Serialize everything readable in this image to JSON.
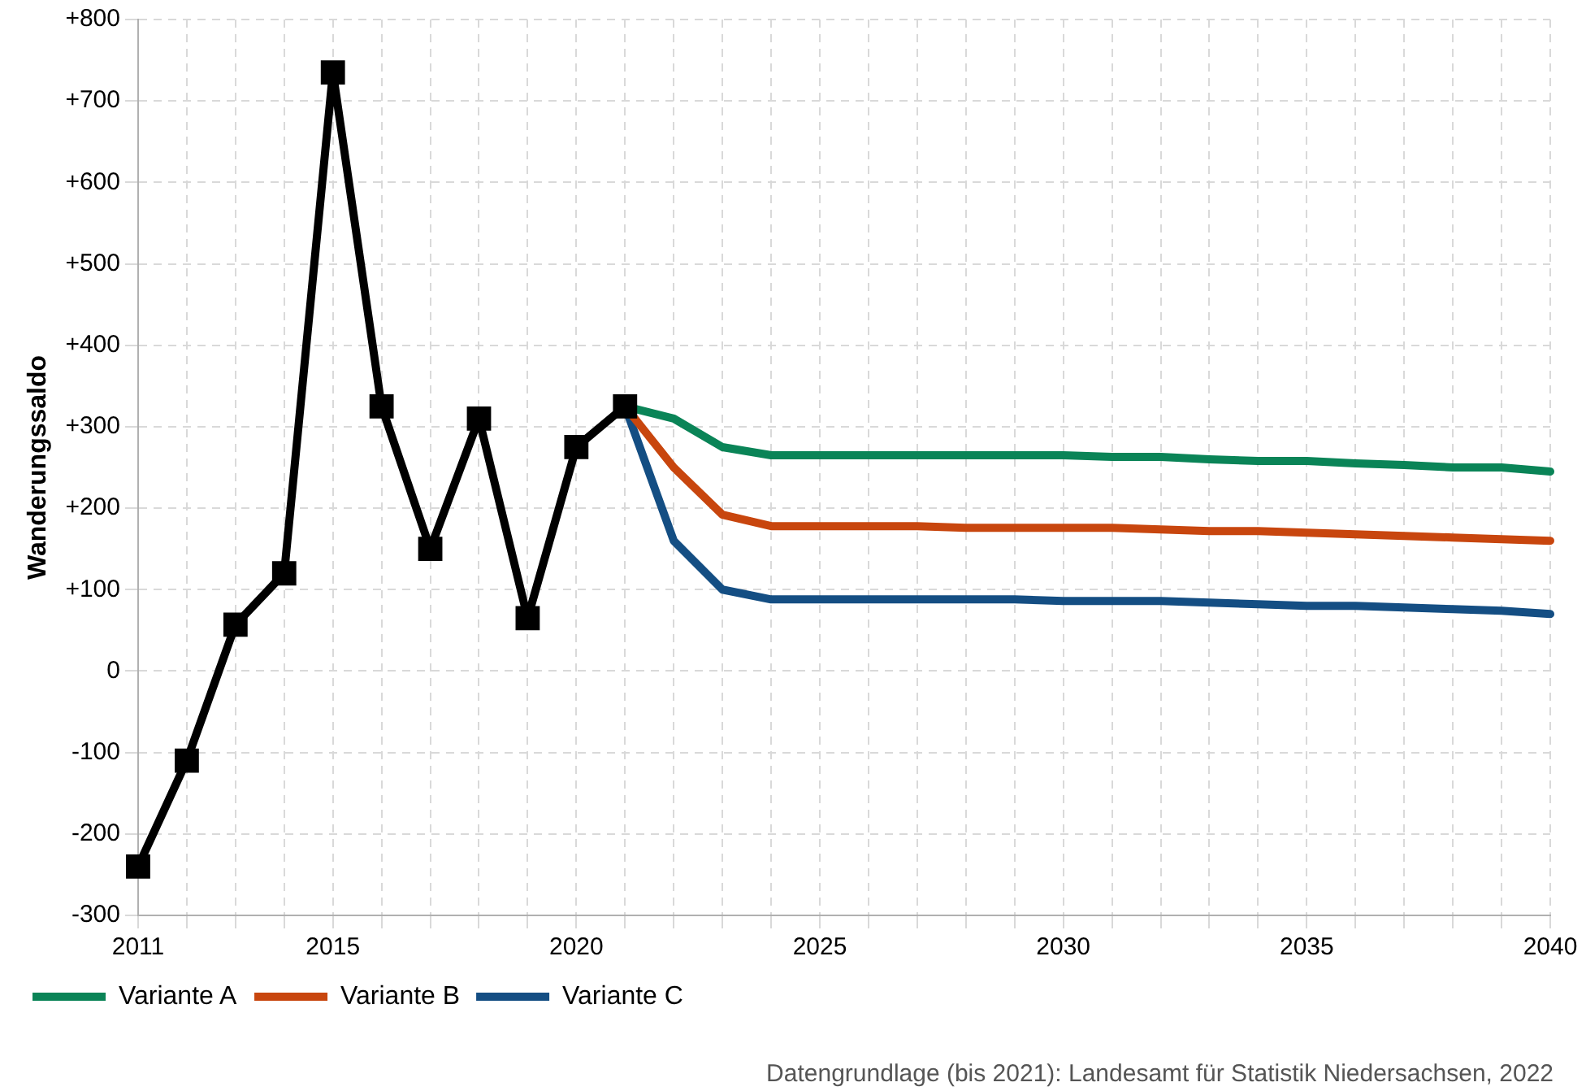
{
  "chart_data": {
    "type": "line",
    "ylabel": "Wanderungssaldo",
    "xlim": [
      2011,
      2040
    ],
    "xticks": [
      2011,
      {
        "value": 2012,
        "label": null
      },
      {
        "value": 2013,
        "label": null
      },
      {
        "value": 2014,
        "label": null
      },
      2015,
      {
        "value": 2016,
        "label": null
      },
      {
        "value": 2017,
        "label": null
      },
      {
        "value": 2018,
        "label": null
      },
      {
        "value": 2019,
        "label": null
      },
      2020,
      {
        "value": 2021,
        "label": null
      },
      {
        "value": 2022,
        "label": null
      },
      {
        "value": 2023,
        "label": null
      },
      {
        "value": 2024,
        "label": null
      },
      2025,
      {
        "value": 2026,
        "label": null
      },
      {
        "value": 2027,
        "label": null
      },
      {
        "value": 2028,
        "label": null
      },
      {
        "value": 2029,
        "label": null
      },
      2030,
      {
        "value": 2031,
        "label": null
      },
      {
        "value": 2032,
        "label": null
      },
      {
        "value": 2033,
        "label": null
      },
      {
        "value": 2034,
        "label": null
      },
      2035,
      {
        "value": 2036,
        "label": null
      },
      {
        "value": 2037,
        "label": null
      },
      {
        "value": 2038,
        "label": null
      },
      {
        "value": 2039,
        "label": null
      },
      2040
    ],
    "ylim": [
      -300,
      800
    ],
    "yticks": [
      -300,
      -200,
      -100,
      0,
      {
        "value": 100,
        "label": "+100"
      },
      {
        "value": 200,
        "label": "+200"
      },
      {
        "value": 300,
        "label": "+300"
      },
      {
        "value": 400,
        "label": "+400"
      },
      {
        "value": 500,
        "label": "+500"
      },
      {
        "value": 600,
        "label": "+600"
      },
      {
        "value": 700,
        "label": "+700"
      },
      {
        "value": 800,
        "label": "+800"
      }
    ],
    "grid": true,
    "legend": "bottom",
    "line_style": "solid",
    "series": [
      {
        "color": "#000000",
        "marker": "square",
        "x": [
          2011,
          2012,
          2013,
          2014,
          2015,
          2016,
          2017,
          2018,
          2019,
          2020,
          2021
        ],
        "values": [
          -240,
          -110,
          57,
          120,
          735,
          325,
          150,
          310,
          65,
          275,
          325
        ]
      },
      {
        "name": "Variante A",
        "color": "#0a8457",
        "marker": "none",
        "x": [
          2021,
          2022,
          2023,
          2024,
          2025,
          2026,
          2027,
          2028,
          2029,
          2030,
          2031,
          2032,
          2033,
          2034,
          2035,
          2036,
          2037,
          2038,
          2039,
          2040
        ],
        "values": [
          325,
          310,
          275,
          265,
          265,
          265,
          265,
          265,
          265,
          265,
          263,
          263,
          260,
          258,
          258,
          255,
          253,
          250,
          250,
          245
        ]
      },
      {
        "name": "Variante B",
        "color": "#c8460e",
        "marker": "none",
        "x": [
          2021,
          2022,
          2023,
          2024,
          2025,
          2026,
          2027,
          2028,
          2029,
          2030,
          2031,
          2032,
          2033,
          2034,
          2035,
          2036,
          2037,
          2038,
          2039,
          2040
        ],
        "values": [
          325,
          250,
          192,
          178,
          178,
          178,
          178,
          176,
          176,
          176,
          176,
          174,
          172,
          172,
          170,
          168,
          166,
          164,
          162,
          160
        ]
      },
      {
        "name": "Variante C",
        "color": "#144e83",
        "marker": "none",
        "x": [
          2021,
          2022,
          2023,
          2024,
          2025,
          2026,
          2027,
          2028,
          2029,
          2030,
          2031,
          2032,
          2033,
          2034,
          2035,
          2036,
          2037,
          2038,
          2039,
          2040
        ],
        "values": [
          325,
          160,
          100,
          88,
          88,
          88,
          88,
          88,
          88,
          86,
          86,
          86,
          84,
          82,
          80,
          80,
          78,
          76,
          74,
          70
        ]
      }
    ],
    "annotations": [
      "Datengrundlage (bis 2021): Landesamt für Statistik Niedersachsen, 2022"
    ]
  }
}
